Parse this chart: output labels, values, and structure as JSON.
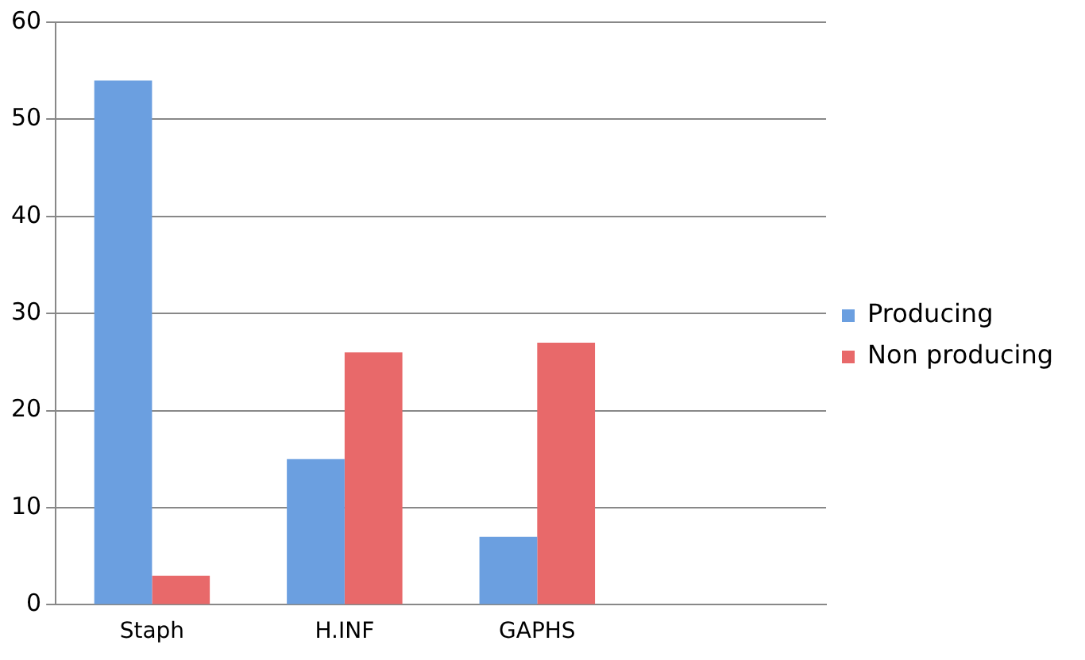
{
  "chart_data": {
    "type": "bar",
    "categories": [
      "Staph",
      "H.INF",
      "GAPHS",
      null
    ],
    "series": [
      {
        "name": "Producing",
        "color": "#6b9fe0",
        "values": [
          54,
          15,
          7,
          null
        ]
      },
      {
        "name": "Non producing",
        "color": "#e8696a",
        "values": [
          3,
          26,
          27,
          null
        ]
      }
    ],
    "ylim": [
      0,
      60
    ],
    "yticks": [
      0,
      10,
      20,
      30,
      40,
      50,
      60
    ],
    "grid": "y",
    "legend": "right"
  }
}
